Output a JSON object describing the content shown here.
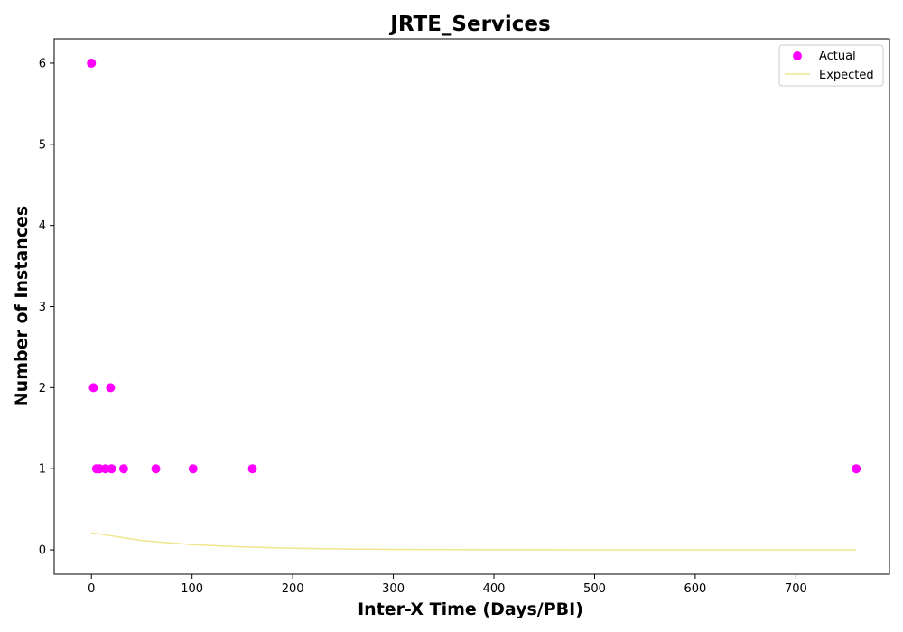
{
  "chart_data": {
    "type": "scatter",
    "title": "JRTE_Services",
    "xlabel": "Inter-X Time (Days/PBI)",
    "ylabel": "Number of Instances",
    "xlim": [
      -37,
      793
    ],
    "ylim": [
      -0.3,
      6.3
    ],
    "xticks": [
      0,
      100,
      200,
      300,
      400,
      500,
      600,
      700
    ],
    "yticks": [
      0,
      1,
      2,
      3,
      4,
      5,
      6
    ],
    "grid": false,
    "legend_position": "top-right",
    "series": [
      {
        "name": "Actual",
        "kind": "scatter",
        "color": "#ff00ff",
        "points": [
          {
            "x": 0,
            "y": 6
          },
          {
            "x": 2,
            "y": 2
          },
          {
            "x": 19,
            "y": 2
          },
          {
            "x": 5,
            "y": 1
          },
          {
            "x": 8,
            "y": 1
          },
          {
            "x": 14,
            "y": 1
          },
          {
            "x": 20,
            "y": 1
          },
          {
            "x": 32,
            "y": 1
          },
          {
            "x": 64,
            "y": 1
          },
          {
            "x": 101,
            "y": 1
          },
          {
            "x": 160,
            "y": 1
          },
          {
            "x": 760,
            "y": 1
          }
        ]
      },
      {
        "name": "Expected",
        "kind": "line",
        "color": "#f0e68c",
        "points": [
          {
            "x": 0,
            "y": 0.21
          },
          {
            "x": 50,
            "y": 0.115
          },
          {
            "x": 100,
            "y": 0.065
          },
          {
            "x": 150,
            "y": 0.036
          },
          {
            "x": 200,
            "y": 0.02
          },
          {
            "x": 250,
            "y": 0.011
          },
          {
            "x": 300,
            "y": 0.006
          },
          {
            "x": 400,
            "y": 0.002
          },
          {
            "x": 500,
            "y": 0.0005
          },
          {
            "x": 600,
            "y": 0.0001
          },
          {
            "x": 760,
            "y": 0.0
          }
        ]
      }
    ]
  }
}
